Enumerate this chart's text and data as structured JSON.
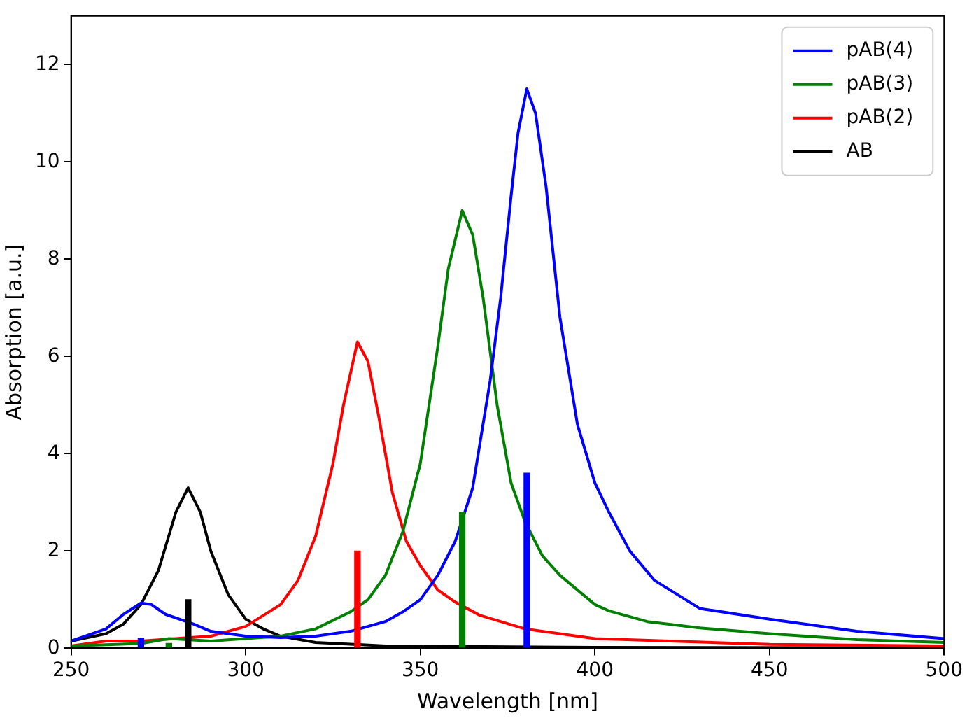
{
  "chart_data": {
    "type": "line",
    "xlabel": "Wavelength [nm]",
    "ylabel": "Absorption [a.u.]",
    "xlim": [
      250,
      500
    ],
    "xticks": [
      250,
      300,
      350,
      400,
      450,
      500
    ],
    "ylim": [
      0,
      13
    ],
    "yticks": [
      0,
      2,
      4,
      6,
      8,
      10,
      12
    ],
    "grid": false,
    "legend": "top right",
    "marker": "none",
    "line_style": "solid",
    "series": [
      {
        "name": "pAB(4)",
        "color": "#0000ff",
        "x": [
          250,
          260,
          265,
          270,
          273,
          277,
          285,
          290,
          300,
          310,
          320,
          330,
          340,
          345,
          350,
          355,
          360,
          365,
          370,
          373,
          376,
          378,
          380.5,
          383,
          386,
          390,
          395,
          400,
          404,
          410,
          417,
          430,
          450,
          475,
          500
        ],
        "values": [
          0.15,
          0.4,
          0.7,
          0.93,
          0.9,
          0.7,
          0.5,
          0.35,
          0.25,
          0.22,
          0.25,
          0.35,
          0.55,
          0.75,
          1.0,
          1.5,
          2.2,
          3.3,
          5.5,
          7.2,
          9.3,
          10.6,
          11.5,
          11.0,
          9.5,
          6.8,
          4.6,
          3.4,
          2.8,
          2.0,
          1.4,
          0.82,
          0.6,
          0.35,
          0.2
        ]
      },
      {
        "name": "pAB(3)",
        "color": "#008000",
        "x": [
          250,
          270,
          278,
          290,
          300,
          310,
          320,
          330,
          335,
          340,
          345,
          350,
          355,
          358,
          362,
          365,
          368,
          372,
          376,
          380,
          385,
          390,
          400,
          404,
          415,
          430,
          450,
          475,
          500
        ],
        "values": [
          0.05,
          0.1,
          0.2,
          0.15,
          0.2,
          0.25,
          0.4,
          0.75,
          1.0,
          1.5,
          2.4,
          3.8,
          6.2,
          7.8,
          9.0,
          8.5,
          7.2,
          5.0,
          3.4,
          2.6,
          1.9,
          1.5,
          0.9,
          0.77,
          0.55,
          0.42,
          0.3,
          0.18,
          0.12
        ]
      },
      {
        "name": "pAB(2)",
        "color": "#ff0000",
        "x": [
          250,
          260,
          270,
          280,
          290,
          300,
          310,
          315,
          320,
          325,
          328,
          332,
          335,
          338,
          342,
          346,
          350,
          355,
          360,
          367,
          380,
          400,
          450,
          500
        ],
        "values": [
          0.05,
          0.15,
          0.15,
          0.2,
          0.25,
          0.45,
          0.9,
          1.4,
          2.3,
          3.8,
          5.0,
          6.3,
          5.9,
          4.8,
          3.2,
          2.2,
          1.7,
          1.2,
          0.95,
          0.68,
          0.4,
          0.2,
          0.08,
          0.05
        ]
      },
      {
        "name": "AB",
        "color": "#000000",
        "x": [
          250,
          260,
          265,
          270,
          275,
          280,
          283.5,
          287,
          290,
          295,
          300,
          305,
          310,
          320,
          340,
          400,
          500
        ],
        "values": [
          0.15,
          0.3,
          0.5,
          0.9,
          1.6,
          2.8,
          3.3,
          2.8,
          2.0,
          1.1,
          0.6,
          0.4,
          0.25,
          0.12,
          0.05,
          0.02,
          0.01
        ]
      },
      {
        "type": "bar",
        "color": "#0000ff",
        "x": [
          270,
          380.5
        ],
        "values": [
          0.2,
          3.6
        ]
      },
      {
        "type": "bar",
        "color": "#008000",
        "x": [
          278,
          362
        ],
        "values": [
          0.1,
          2.8
        ]
      },
      {
        "type": "bar",
        "color": "#ff0000",
        "x": [
          332
        ],
        "values": [
          2.0
        ]
      },
      {
        "type": "bar",
        "color": "#000000",
        "x": [
          283.5
        ],
        "values": [
          1.0
        ]
      }
    ]
  }
}
